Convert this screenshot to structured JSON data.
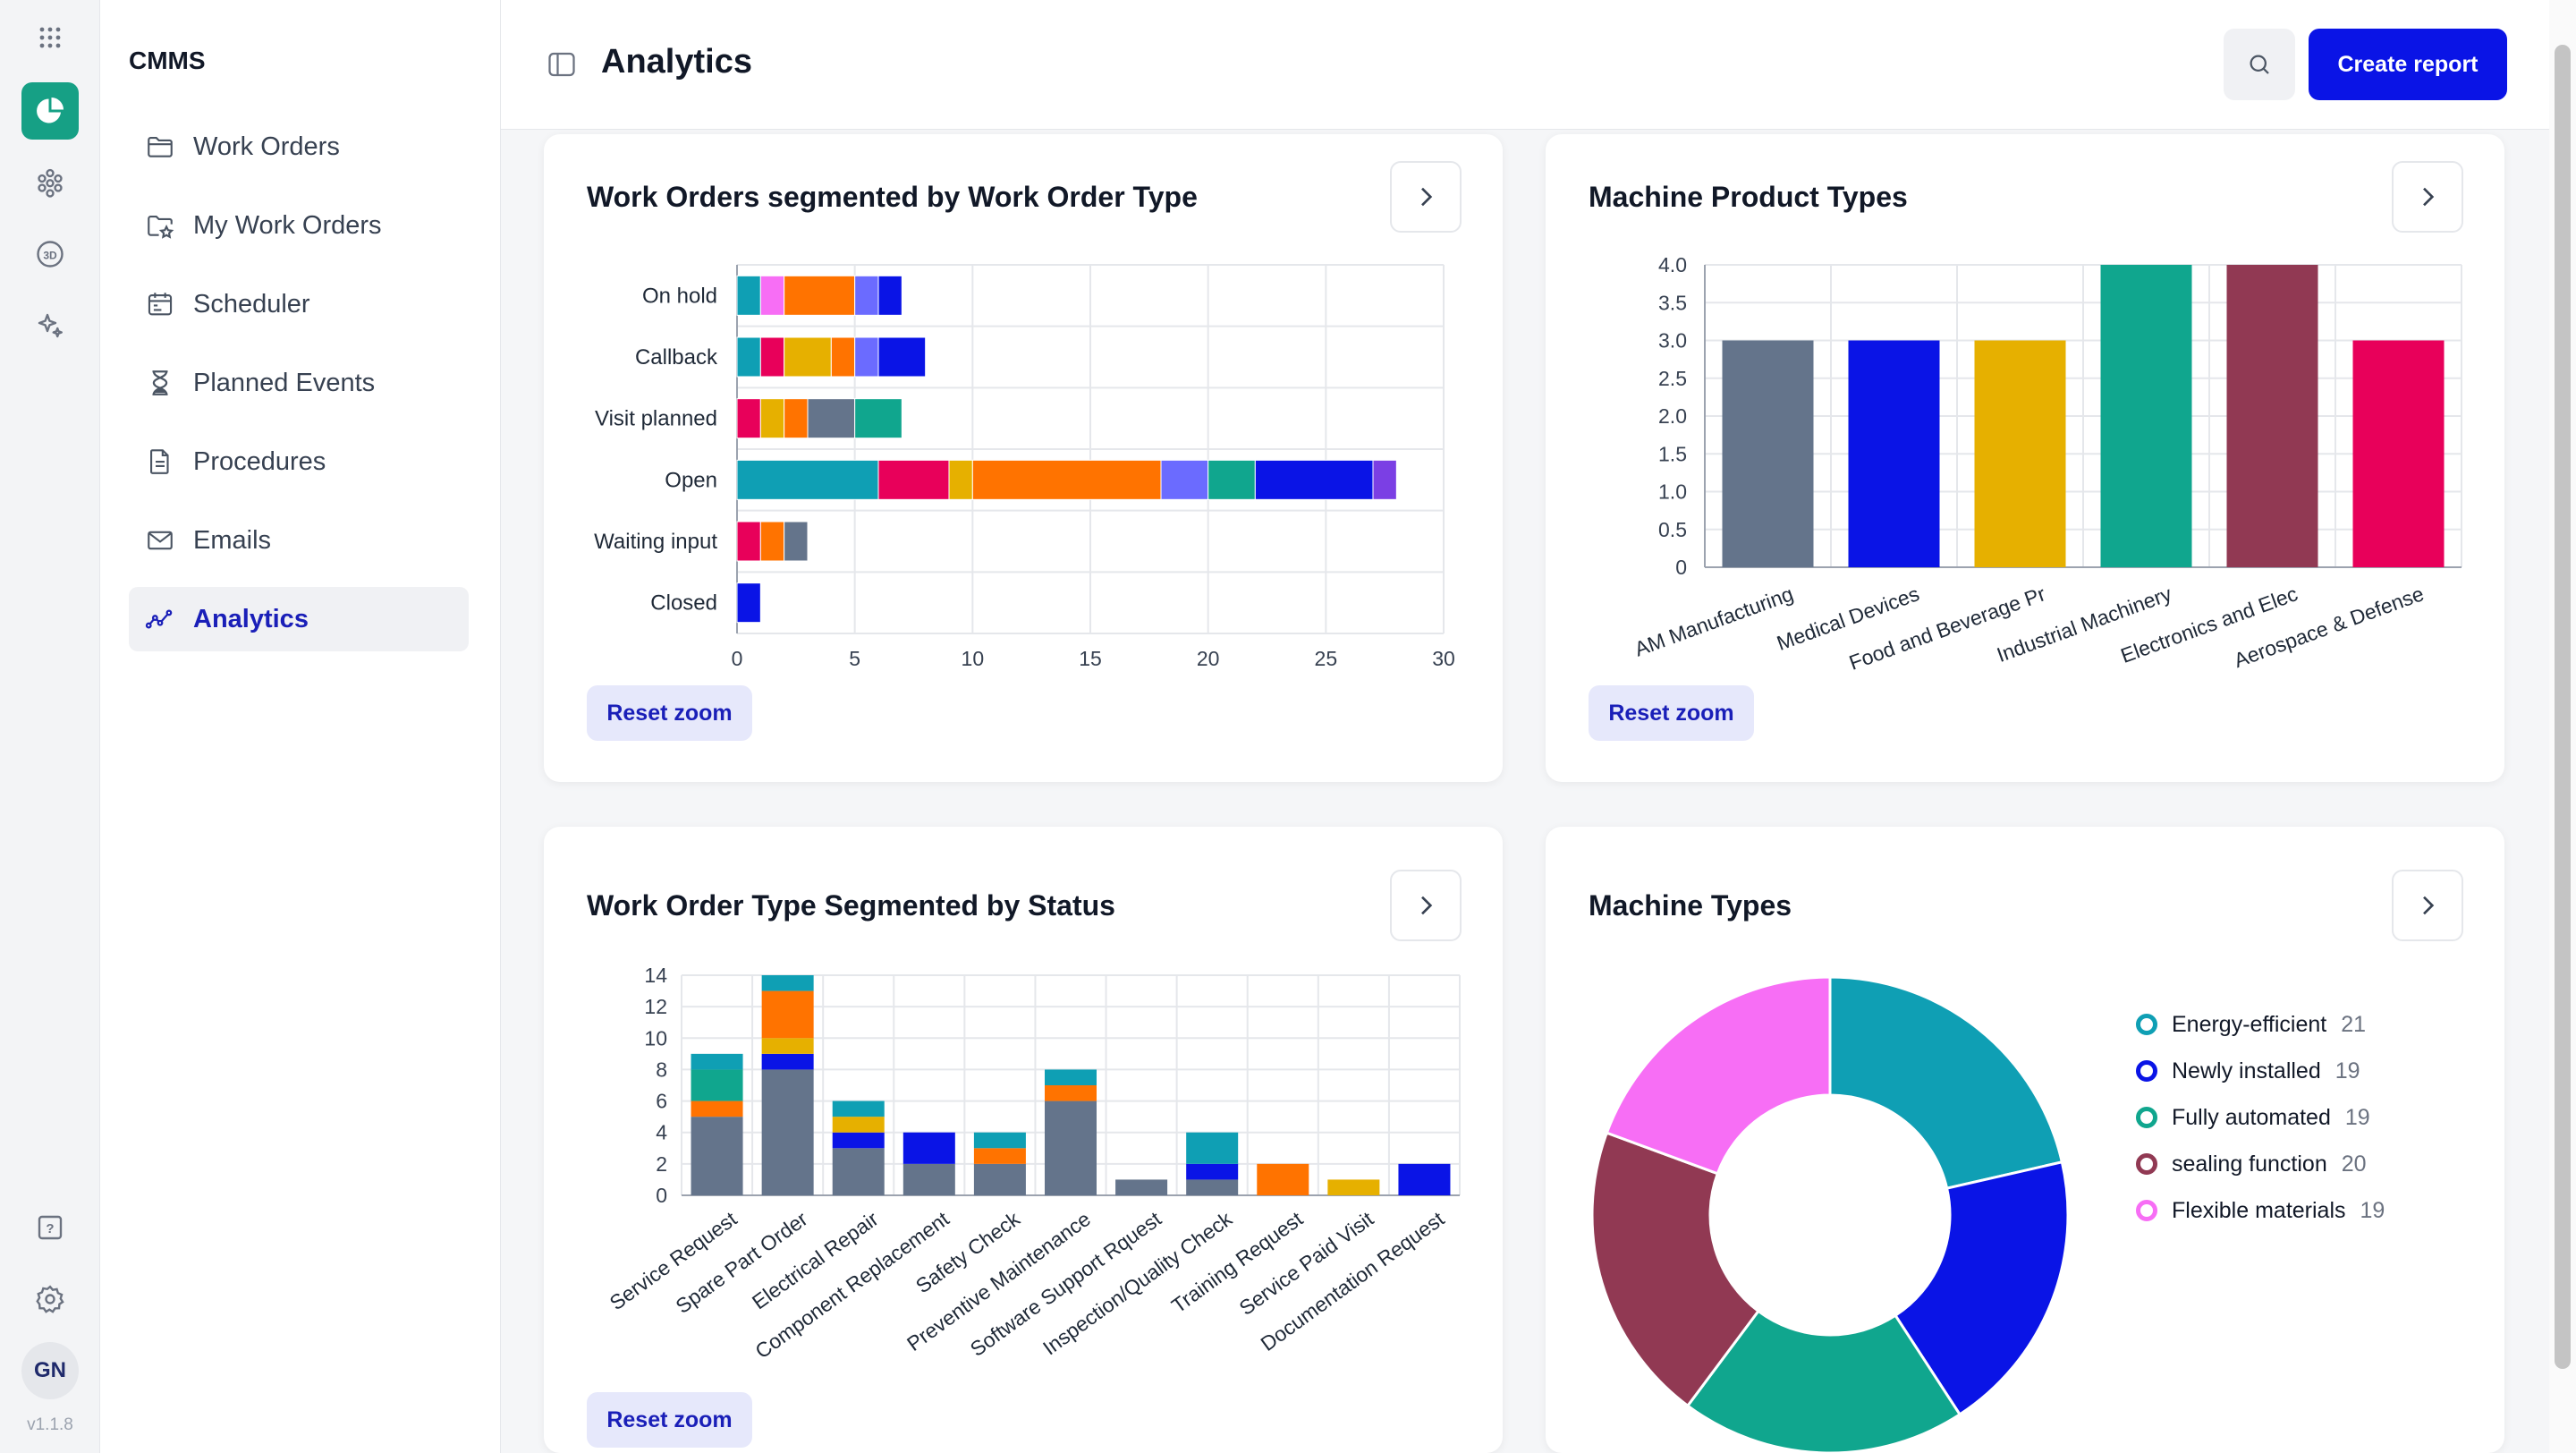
{
  "app": {
    "brand": "CMMS",
    "version": "v1.1.8",
    "user_initials": "GN"
  },
  "rail_icons": [
    "apps-grid-icon",
    "analytics-pie-icon",
    "modules-icon",
    "3d-view-icon",
    "sparkle-ai-icon",
    "help-icon",
    "settings-icon"
  ],
  "sidebar": {
    "items": [
      {
        "label": "Work Orders",
        "icon": "folder-icon"
      },
      {
        "label": "My Work Orders",
        "icon": "folder-star-icon"
      },
      {
        "label": "Scheduler",
        "icon": "calendar-icon"
      },
      {
        "label": "Planned Events",
        "icon": "hourglass-icon"
      },
      {
        "label": "Procedures",
        "icon": "document-icon"
      },
      {
        "label": "Emails",
        "icon": "mail-icon"
      },
      {
        "label": "Analytics",
        "icon": "analytics-line-icon",
        "active": true
      }
    ]
  },
  "header": {
    "title": "Analytics",
    "create_label": "Create report"
  },
  "cards": {
    "wo_by_type": {
      "title": "Work Orders segmented by Work Order Type",
      "reset_label": "Reset zoom"
    },
    "machine_product": {
      "title": "Machine Product Types",
      "reset_label": "Reset zoom"
    },
    "type_by_status": {
      "title": "Work Order Type Segmented by Status",
      "reset_label": "Reset zoom"
    },
    "machine_types": {
      "title": "Machine Types"
    }
  },
  "chart_data": [
    {
      "id": "wo_by_type",
      "type": "bar",
      "orientation": "horizontal",
      "stacked": true,
      "title": "Work Orders segmented by Work Order Type",
      "categories": [
        "On hold",
        "Callback",
        "Visit planned",
        "Open",
        "Waiting input",
        "Closed"
      ],
      "xlim": [
        0,
        30
      ],
      "xticks": [
        0,
        5,
        10,
        15,
        20,
        25,
        30
      ],
      "grid": true,
      "segment_colors": [
        "#0f9fb4",
        "#e8005a",
        "#f76ef5",
        "#e6b000",
        "#ff7300",
        "#64748b",
        "#6b6bff",
        "#10a68e",
        "#0a14e6",
        "#7b3fe4"
      ],
      "segments": [
        [
          [
            0,
            1
          ],
          [
            2,
            1
          ],
          [
            4,
            3
          ],
          [
            6,
            1
          ],
          [
            8,
            1
          ]
        ],
        [
          [
            0,
            1
          ],
          [
            1,
            1
          ],
          [
            3,
            2
          ],
          [
            4,
            1
          ],
          [
            6,
            1
          ],
          [
            8,
            2
          ]
        ],
        [
          [
            1,
            1
          ],
          [
            3,
            1
          ],
          [
            4,
            1
          ],
          [
            5,
            2
          ],
          [
            7,
            2
          ]
        ],
        [
          [
            0,
            6
          ],
          [
            1,
            3
          ],
          [
            3,
            1
          ],
          [
            4,
            8
          ],
          [
            6,
            2
          ],
          [
            7,
            2
          ],
          [
            8,
            5
          ],
          [
            9,
            1
          ]
        ],
        [
          [
            1,
            1
          ],
          [
            4,
            1
          ],
          [
            5,
            1
          ]
        ],
        [
          [
            8,
            1
          ]
        ]
      ]
    },
    {
      "id": "machine_product",
      "type": "bar",
      "title": "Machine Product Types",
      "categories": [
        "AM Manufacturing",
        "Medical Devices",
        "Food and Beverage Pr",
        "Industrial Machinery",
        "Electronics and Elec",
        "Aerospace & Defense"
      ],
      "values": [
        3,
        3,
        3,
        4,
        4,
        3
      ],
      "colors": [
        "#64748b",
        "#0a14e6",
        "#e6b000",
        "#10a68e",
        "#913953",
        "#e8005a"
      ],
      "ylim": [
        0,
        4
      ],
      "yticks": [
        "0",
        "0.5",
        "1.0",
        "1.5",
        "2.0",
        "2.5",
        "3.0",
        "3.5",
        "4.0"
      ],
      "grid": true
    },
    {
      "id": "type_by_status",
      "type": "bar",
      "stacked": true,
      "title": "Work Order Type Segmented by Status",
      "categories": [
        "Service Request",
        "Spare Part Order",
        "Electrical Repair",
        "Component Replacement",
        "Safety Check",
        "Preventive Maintenance",
        "Software Support Rquest",
        "Inspection/Quality Check",
        "Training Request",
        "Service Paid Visit",
        "Documentation Request"
      ],
      "ylim": [
        0,
        14
      ],
      "yticks": [
        0,
        2,
        4,
        6,
        8,
        10,
        12,
        14
      ],
      "grid": true,
      "segment_colors": [
        "#64748b",
        "#ff7300",
        "#10a68e",
        "#0a14e6",
        "#e6b000",
        "#0f9fb4"
      ],
      "segments": [
        [
          [
            0,
            5
          ],
          [
            1,
            1
          ],
          [
            2,
            2
          ],
          [
            5,
            1
          ]
        ],
        [
          [
            0,
            8
          ],
          [
            3,
            1
          ],
          [
            4,
            1
          ],
          [
            1,
            3
          ],
          [
            5,
            1
          ]
        ],
        [
          [
            0,
            3
          ],
          [
            3,
            1
          ],
          [
            4,
            1
          ],
          [
            5,
            1
          ]
        ],
        [
          [
            0,
            2
          ],
          [
            3,
            2
          ]
        ],
        [
          [
            0,
            2
          ],
          [
            1,
            1
          ],
          [
            5,
            1
          ]
        ],
        [
          [
            0,
            6
          ],
          [
            1,
            1
          ],
          [
            5,
            1
          ]
        ],
        [
          [
            0,
            1
          ]
        ],
        [
          [
            0,
            1
          ],
          [
            3,
            1
          ],
          [
            5,
            2
          ]
        ],
        [
          [
            1,
            2
          ]
        ],
        [
          [
            4,
            1
          ]
        ],
        [
          [
            3,
            2
          ]
        ]
      ]
    },
    {
      "id": "machine_types",
      "type": "pie",
      "donut": true,
      "title": "Machine Types",
      "legend_position": "right",
      "labels": [
        "Energy-efficient",
        "Newly installed",
        "Fully automated",
        "sealing function",
        "Flexible materials"
      ],
      "values": [
        21,
        19,
        19,
        20,
        19
      ],
      "colors": [
        "#0f9fb4",
        "#0a14e6",
        "#10a68e",
        "#913953",
        "#f76ef5"
      ]
    }
  ]
}
